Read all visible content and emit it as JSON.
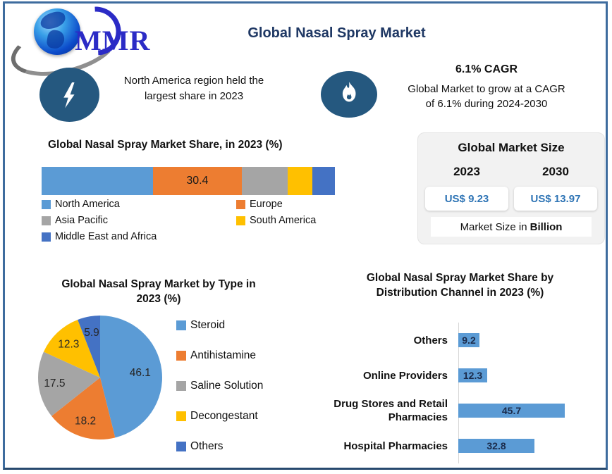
{
  "frame": {
    "border_color": "#3E6C9E",
    "background": "#FFFFFF"
  },
  "header": {
    "logo_text": "MMR",
    "title": "Global Nasal Spray Market",
    "title_color": "#1F3864"
  },
  "callouts": {
    "left": {
      "icon": "lightning-icon",
      "line1": "North America region held the",
      "line2": "largest share in 2023"
    },
    "right": {
      "icon": "flame-icon",
      "heading": "6.1% CAGR",
      "line1": "Global Market to grow at a CAGR",
      "line2": "of 6.1% during 2024-2030"
    }
  },
  "market_size": {
    "title": "Global Market Size",
    "year_left": "2023",
    "year_right": "2030",
    "value_left": "US$ 9.23",
    "value_right": "US$ 13.97",
    "footnote_regular": "Market Size in",
    "footnote_bold": "Billion",
    "value_color": "#2E74B5"
  },
  "chart_data": [
    {
      "id": "region_share_stacked_bar",
      "type": "bar",
      "variant": "horizontal-stacked",
      "title": "Global Nasal Spray Market Share, in 2023 (%)",
      "categories": [
        "North America",
        "Europe",
        "Asia Pacific",
        "South America",
        "Middle East and Africa"
      ],
      "values": [
        37.9,
        30.4,
        15.6,
        8.5,
        7.6
      ],
      "data_labels": [
        "",
        "30.4",
        "",
        "",
        ""
      ],
      "colors": [
        "#5B9BD5",
        "#ED7D31",
        "#A5A5A5",
        "#FFC000",
        "#4472C4"
      ],
      "legend_position": "bottom",
      "legend_columns": 2,
      "note": "only the Europe segment carries a visible data label (30.4); other values estimated from segment widths"
    },
    {
      "id": "type_share_pie",
      "type": "pie",
      "title_line1": "Global Nasal Spray Market by Type in",
      "title_line2": "2023 (%)",
      "categories": [
        "Steroid",
        "Antihistamine",
        "Saline Solution",
        "Decongestant",
        "Others"
      ],
      "values": [
        46.1,
        18.2,
        17.5,
        12.3,
        5.9
      ],
      "colors": [
        "#5B9BD5",
        "#ED7D31",
        "#A5A5A5",
        "#FFC000",
        "#4472C4"
      ],
      "start_angle_deg": 0,
      "direction": "clockwise",
      "legend_position": "right"
    },
    {
      "id": "distribution_share_bar",
      "type": "bar",
      "variant": "horizontal",
      "title_line1": "Global Nasal Spray Market Share by",
      "title_line2": "Distribution Channel in 2023 (%)",
      "categories": [
        "Others",
        "Online Providers",
        "Drug Stores and Retail Pharmacies",
        "Hospital Pharmacies"
      ],
      "values": [
        9.2,
        12.3,
        45.7,
        32.8
      ],
      "xlim": [
        0,
        50
      ],
      "bar_color": "#5B9BD5",
      "value_labels_inside": true,
      "grid": false
    }
  ]
}
